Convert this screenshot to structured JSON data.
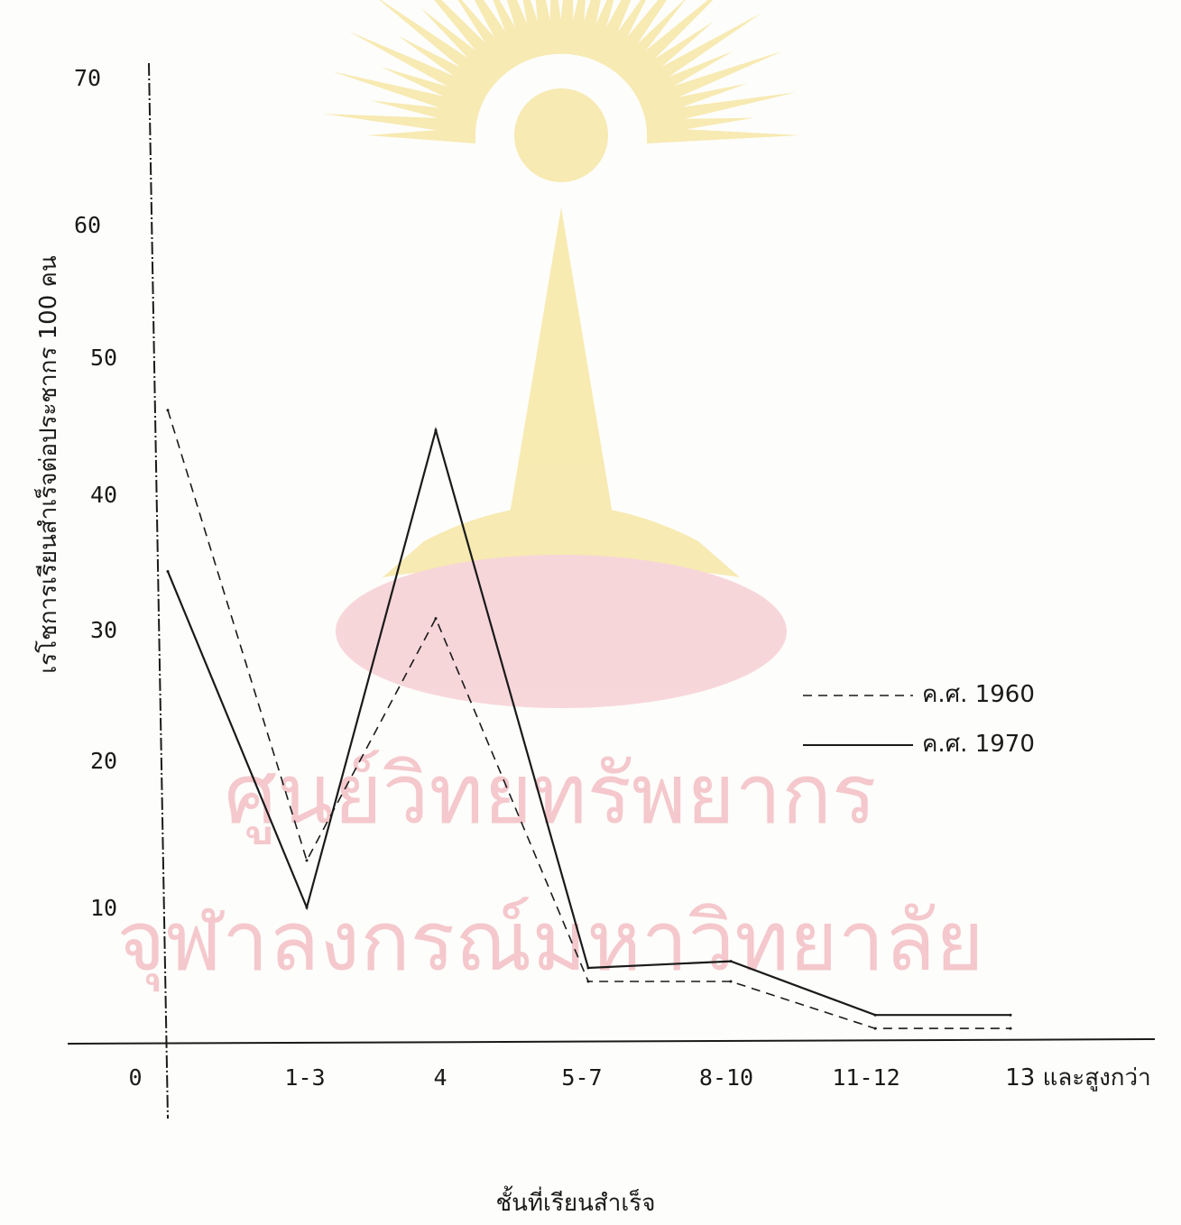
{
  "chart_data": {
    "type": "line",
    "categories": [
      "0",
      "1-3",
      "4",
      "5-7",
      "8-10",
      "11-12",
      "13 และสูงกว่า"
    ],
    "series": [
      {
        "name": "ค.ศ. 1960",
        "values": [
          47,
          13.5,
          31.5,
          4.5,
          4.5,
          1,
          1
        ],
        "style": "dashed"
      },
      {
        "name": "ค.ศ. 1970",
        "values": [
          35,
          10,
          45.5,
          5.5,
          6,
          2,
          2
        ],
        "style": "solid"
      }
    ],
    "yticks": [
      "10",
      "20",
      "30",
      "40",
      "50",
      "60",
      "70"
    ],
    "ylim": [
      0,
      70
    ],
    "ylabel": "เรโชการเรียนสำเร็จต่อประชากร 100 คน",
    "xlabel": "ชั้นที่เรียนสำเร็จ",
    "legend_position": "right",
    "grid": false
  },
  "watermark": {
    "line1": "ศูนย์วิทยทรัพยากร",
    "line2": "จุฬาลงกรณ์มหาวิทยาลัย",
    "emblem": "chulalongkorn-university-seal",
    "colors": {
      "emblem": "#f6e49a",
      "base": "#f6c9cf",
      "text": "#f4c8cc"
    }
  },
  "colors": {
    "ink": "#1a1a1a",
    "paper": "#fdfdfb"
  }
}
